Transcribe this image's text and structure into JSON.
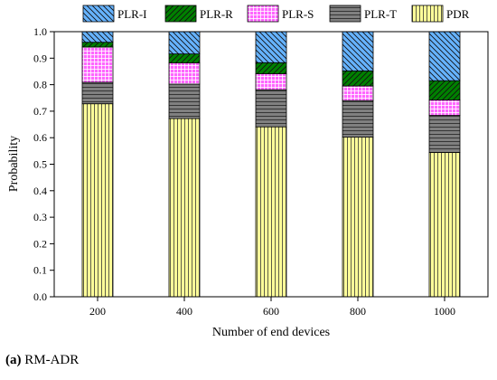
{
  "caption": {
    "tag": "(a)",
    "text": "RM-ADR"
  },
  "chart_data": {
    "type": "bar",
    "stacked": true,
    "categories": [
      "200",
      "400",
      "600",
      "800",
      "1000"
    ],
    "xlabel": "Number of end devices",
    "ylabel": "Probability",
    "ylim": [
      0,
      1.0
    ],
    "yticks": [
      "0.0",
      "0.1",
      "0.2",
      "0.3",
      "0.4",
      "0.5",
      "0.6",
      "0.7",
      "0.8",
      "0.9",
      "1.0"
    ],
    "legend_position": "top",
    "legend_order": [
      "PLR-I",
      "PLR-R",
      "PLR-S",
      "PLR-T",
      "PDR"
    ],
    "series": [
      {
        "name": "PDR",
        "values": [
          0.728,
          0.672,
          0.641,
          0.602,
          0.544
        ],
        "color": "#ffff99",
        "pattern": "vlines"
      },
      {
        "name": "PLR-T",
        "values": [
          0.081,
          0.13,
          0.14,
          0.138,
          0.14
        ],
        "color": "#808080",
        "pattern": "hlines"
      },
      {
        "name": "PLR-S",
        "values": [
          0.133,
          0.08,
          0.06,
          0.055,
          0.058
        ],
        "color": "#ff66ff",
        "pattern": "grid"
      },
      {
        "name": "PLR-R",
        "values": [
          0.018,
          0.034,
          0.042,
          0.057,
          0.073
        ],
        "color": "#008000",
        "pattern": "diag-up"
      },
      {
        "name": "PLR-I",
        "values": [
          0.04,
          0.084,
          0.117,
          0.148,
          0.185
        ],
        "color": "#66b3ff",
        "pattern": "diag-down"
      }
    ]
  }
}
